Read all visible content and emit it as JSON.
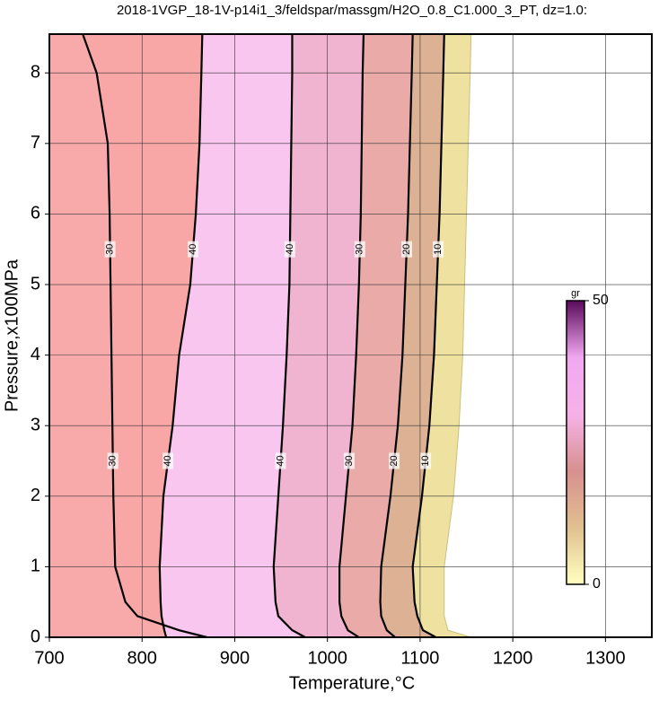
{
  "chart_data": {
    "type": "contour",
    "title": "2018-1VGP_18-1V-p14i1_3/feldspar/massgm/H2O_0.8_C1.000_3_PT, dz=1.0:",
    "x_label": "Temperature,°C",
    "y_label": "Pressure,x100MPa",
    "xlim": [
      700,
      1350
    ],
    "ylim": [
      0,
      8.55
    ],
    "xticks": [
      700,
      800,
      900,
      1000,
      1100,
      1200,
      1300
    ],
    "yticks": [
      0,
      1,
      2,
      3,
      4,
      5,
      6,
      7,
      8
    ],
    "grid": true,
    "pressures": [
      0,
      0.1,
      0.3,
      0.5,
      1,
      2,
      3,
      4,
      5,
      6,
      7,
      8,
      8.55
    ],
    "contours": [
      {
        "level": 30,
        "x": [
          870,
          840,
          795,
          782,
          771,
          769,
          768,
          767,
          766,
          765,
          763,
          751,
          736
        ]
      },
      {
        "level": 40,
        "x": [
          826,
          824,
          821,
          820,
          819,
          823,
          833,
          840,
          852,
          858,
          862,
          864,
          865
        ]
      },
      {
        "level": 40,
        "x": [
          976,
          962,
          947,
          944,
          942,
          947,
          952,
          956,
          959,
          960,
          961,
          962,
          962
        ]
      },
      {
        "level": 30,
        "x": [
          1034,
          1022,
          1015,
          1013,
          1013,
          1020,
          1027,
          1031,
          1034,
          1036,
          1037,
          1038,
          1039
        ]
      },
      {
        "level": 20,
        "x": [
          1073,
          1064,
          1058,
          1057,
          1058,
          1068,
          1076,
          1081,
          1084,
          1087,
          1089,
          1091,
          1092
        ]
      },
      {
        "level": 10,
        "x": [
          1117,
          1103,
          1097,
          1094,
          1092,
          1102,
          1110,
          1115,
          1118,
          1121,
          1123,
          1125,
          1126
        ]
      }
    ],
    "edge": [
      1155,
      1130,
      1126,
      1126,
      1126,
      1136,
      1142,
      1146,
      1148,
      1150,
      1152,
      1154,
      1155
    ],
    "fills": [
      "#f8aaaa",
      "#f8a6a6",
      "#f9c6f0",
      "#f0b4d0",
      "#e9aaa8",
      "#ddb294",
      "#efe2a0"
    ],
    "colorbar": {
      "label": "gr",
      "min": 0,
      "max": 50,
      "ticks": [
        0,
        50
      ],
      "colors": [
        "#ffffc0",
        "#e0c090",
        "#d89090",
        "#f6b2e8",
        "#f0a8f0",
        "#5a0a5a"
      ]
    }
  }
}
